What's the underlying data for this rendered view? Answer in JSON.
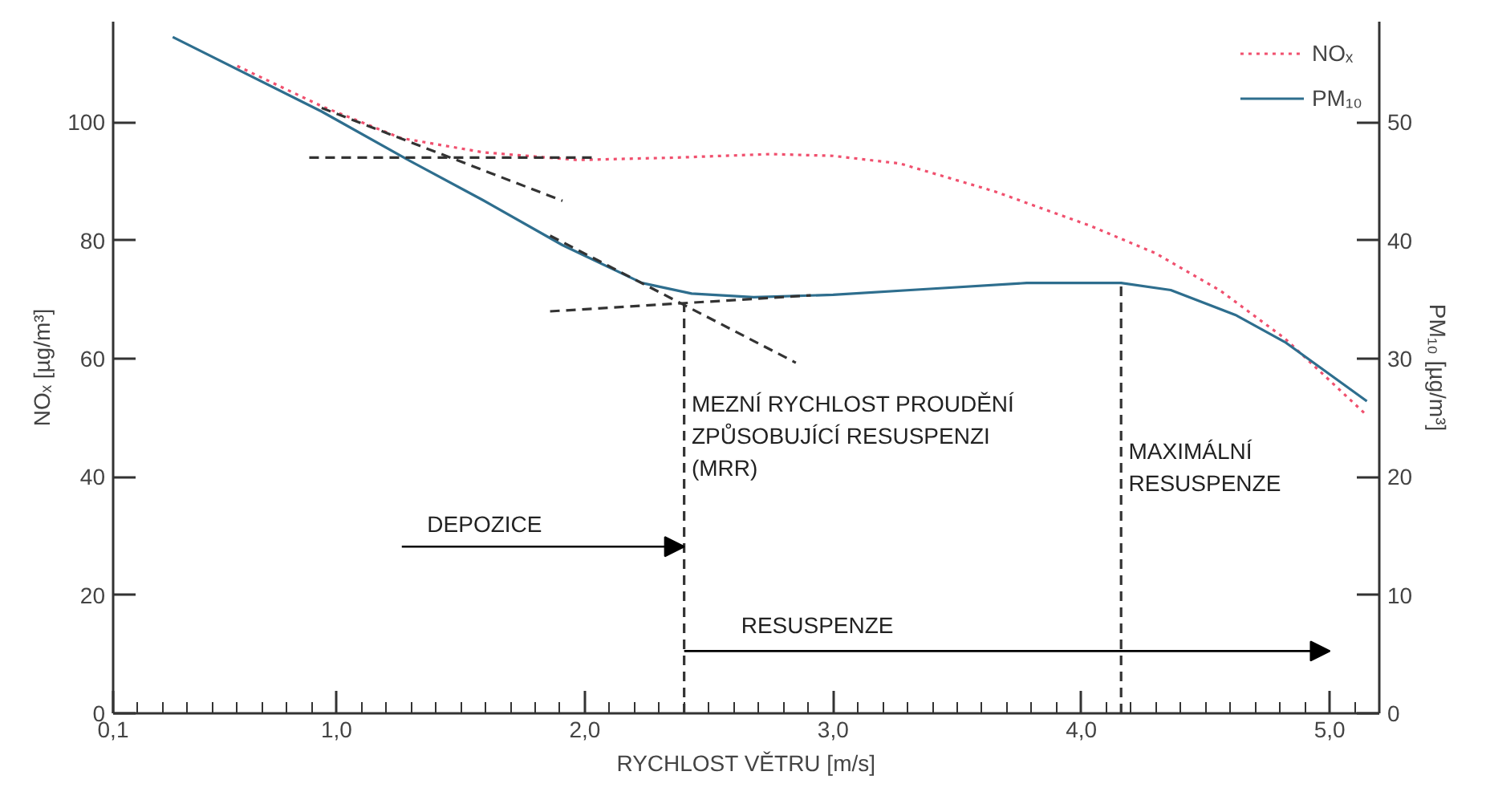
{
  "chart_data": {
    "type": "line",
    "xlabel": "RYCHLOST VĚTRU [m/s]",
    "ylabel": "NOₓ [µg/m³]",
    "y2label": "PM₁₀ [µg/m³]",
    "xlim": [
      0.1,
      5.2
    ],
    "ylim": [
      0,
      117
    ],
    "y2lim": [
      0,
      58.5
    ],
    "xticks": [
      {
        "value": 0.1,
        "label": "0,1"
      },
      {
        "value": 1,
        "label": "1,0"
      },
      {
        "value": 2,
        "label": "2,0"
      },
      {
        "value": 3,
        "label": "3,0"
      },
      {
        "value": 4,
        "label": "4,0"
      },
      {
        "value": 5,
        "label": "5,0"
      },
      {
        "value": 0.2,
        "label": null
      },
      {
        "value": 0.3,
        "label": null
      },
      {
        "value": 0.4,
        "label": null
      },
      {
        "value": 0.5,
        "label": null
      },
      {
        "value": 0.6,
        "label": null
      },
      {
        "value": 0.7,
        "label": null
      },
      {
        "value": 0.8,
        "label": null
      },
      {
        "value": 0.9,
        "label": null
      },
      {
        "value": 1.1,
        "label": null
      },
      {
        "value": 1.2,
        "label": null
      },
      {
        "value": 1.3,
        "label": null
      },
      {
        "value": 1.4,
        "label": null
      },
      {
        "value": 1.5,
        "label": null
      },
      {
        "value": 1.6,
        "label": null
      },
      {
        "value": 1.7,
        "label": null
      },
      {
        "value": 1.8,
        "label": null
      },
      {
        "value": 1.9,
        "label": null
      },
      {
        "value": 2.1,
        "label": null
      },
      {
        "value": 2.2,
        "label": null
      },
      {
        "value": 2.3,
        "label": null
      },
      {
        "value": 2.4,
        "label": null
      },
      {
        "value": 2.5,
        "label": null
      },
      {
        "value": 2.6,
        "label": null
      },
      {
        "value": 2.7,
        "label": null
      },
      {
        "value": 2.8,
        "label": null
      },
      {
        "value": 2.9,
        "label": null
      },
      {
        "value": 3.1,
        "label": null
      },
      {
        "value": 3.2,
        "label": null
      },
      {
        "value": 3.3,
        "label": null
      },
      {
        "value": 3.4,
        "label": null
      },
      {
        "value": 3.5,
        "label": null
      },
      {
        "value": 3.6,
        "label": null
      },
      {
        "value": 3.7,
        "label": null
      },
      {
        "value": 3.8,
        "label": null
      },
      {
        "value": 3.9,
        "label": null
      },
      {
        "value": 4.1,
        "label": null
      },
      {
        "value": 4.2,
        "label": null
      },
      {
        "value": 4.3,
        "label": null
      },
      {
        "value": 4.4,
        "label": null
      },
      {
        "value": 4.5,
        "label": null
      },
      {
        "value": 4.6,
        "label": null
      },
      {
        "value": 4.7,
        "label": null
      },
      {
        "value": 4.8,
        "label": null
      },
      {
        "value": 4.9,
        "label": null
      },
      {
        "value": 5.1,
        "label": null
      }
    ],
    "yticks": [
      0,
      20,
      40,
      60,
      80,
      100
    ],
    "y2ticks": [
      0,
      10,
      20,
      30,
      40,
      50
    ],
    "grid": false,
    "legend": "top right",
    "marker": "none",
    "series": [
      {
        "name": "NOₓ",
        "color": "#f0506e",
        "line_style": "dotted",
        "x": [
          0.6,
          0.94,
          1.26,
          1.59,
          1.97,
          2.36,
          2.75,
          3.0,
          3.27,
          3.65,
          4.04,
          4.3,
          4.56,
          4.82,
          5.15
        ],
        "values": [
          109.5,
          102.7,
          97.3,
          94.9,
          93.6,
          94.0,
          94.6,
          94.3,
          93.0,
          88.3,
          82.4,
          77.8,
          71.5,
          63.4,
          50.4
        ]
      },
      {
        "name": "PM₁₀",
        "color": "#2e6e8e",
        "axis": "y2",
        "line_style": "solid",
        "x": [
          0.34,
          0.94,
          1.28,
          1.59,
          1.91,
          2.23,
          2.43,
          2.68,
          3.0,
          3.39,
          3.78,
          4.16,
          4.36,
          4.62,
          4.82,
          5.15
        ],
        "values": [
          57.2,
          50.9,
          46.9,
          43.4,
          39.6,
          36.4,
          35.5,
          35.2,
          35.4,
          35.9,
          36.4,
          36.4,
          35.8,
          33.7,
          31.4,
          26.4
        ]
      },
      {
        "color": "#333333",
        "line_style": "dashed",
        "x": [
          0.89,
          2.03
        ],
        "values": [
          94.0,
          94.0
        ]
      },
      {
        "color": "#333333",
        "line_style": "dashed",
        "x": [
          0.94,
          1.91
        ],
        "values": [
          102.4,
          86.7
        ]
      },
      {
        "color": "#333333",
        "line_style": "dashed",
        "x": [
          1.86,
          2.85
        ],
        "values": [
          80.8,
          59.3
        ]
      },
      {
        "color": "#333333",
        "line_style": "dashed",
        "x": [
          1.86,
          2.91
        ],
        "values": [
          68.0,
          70.7
        ]
      },
      {
        "color": "#333333",
        "line_style": "dashed",
        "x": [
          2.4,
          2.4
        ],
        "values": [
          0,
          69.9
        ]
      },
      {
        "color": "#333333",
        "line_style": "dashed",
        "x": [
          4.16,
          4.16
        ],
        "values": [
          0,
          72.9
        ]
      }
    ],
    "annotations": [
      {
        "text": "MEZNÍ RYCHLOST PROUDĚNÍ\nZPŮSOBUJÍCÍ RESUSPENZI\n(MRR)",
        "x": 2.43,
        "y": 54.5
      },
      {
        "text": "MAXIMÁLNÍ\nRESUSPENZE",
        "x": 4.19,
        "y": 46.5
      },
      {
        "text": "DEPOZICE",
        "x": 2.4,
        "y": 28.2
      },
      "RESUSPENZE"
    ]
  }
}
